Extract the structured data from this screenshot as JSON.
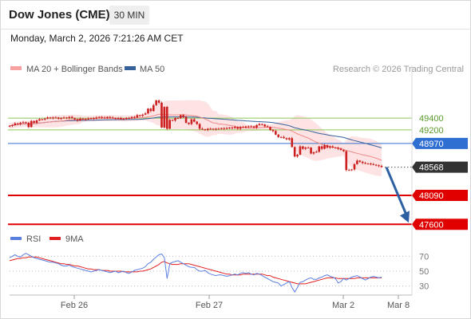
{
  "header": {
    "title": "Dow Jones (CME)",
    "timeframe": "30 MIN",
    "datetime": "Monday, March 2, 2026 7:21:26 AM CET"
  },
  "legend": {
    "ma20_label": "MA 20 + Bollinger Bands",
    "ma50_label": "MA 50",
    "copyright": "Research © 2026 Trading Central",
    "rsi_label": "RSI",
    "rsi_ma_label": "9MA"
  },
  "colors": {
    "ma20": "#f08a8a",
    "bands_fill": "#fde3e3",
    "ma50": "#35609a",
    "candle": "#cc1f1f",
    "resistance": "#8cc85a",
    "pivot": "#2f6fd1",
    "support": "#e00000",
    "arrow": "#2d5fa3",
    "rsi": "#5b7fe0",
    "rsi_ma": "#e02020",
    "last_price_box": "#333333"
  },
  "chart_data": [
    {
      "type": "candlestick",
      "title": "Dow Jones (CME)",
      "timeframe": "30 MIN",
      "x_tick_labels": [
        "Feb 26",
        "Feb 27",
        "Mar 2",
        "Mar 8"
      ],
      "ylim": [
        47550,
        50050
      ],
      "close": [
        49270,
        49280,
        49310,
        49300,
        49320,
        49330,
        49320,
        49250,
        49350,
        49320,
        49360,
        49380,
        49380,
        49390,
        49410,
        49400,
        49410,
        49410,
        49390,
        49400,
        49410,
        49400,
        49420,
        49400,
        49380,
        49360,
        49390,
        49380,
        49380,
        49390,
        49400,
        49390,
        49410,
        49420,
        49410,
        49400,
        49420,
        49410,
        49400,
        49390,
        49400,
        49380,
        49390,
        49400,
        49400,
        49420,
        49410,
        49450,
        49440,
        49460,
        49480,
        49560,
        49520,
        49620,
        49700,
        49660,
        49240,
        49590,
        49220,
        49370,
        49360,
        49400,
        49400,
        49450,
        49420,
        49320,
        49300,
        49380,
        49340,
        49300,
        49220,
        49210,
        49200,
        49220,
        49220,
        49210,
        49220,
        49220,
        49230,
        49220,
        49230,
        49240,
        49230,
        49250,
        49220,
        49250,
        49240,
        49260,
        49250,
        49260,
        49240,
        49280,
        49300,
        49290,
        49260,
        49250,
        49200,
        49180,
        49120,
        49080,
        49080,
        49060,
        49040,
        49060,
        48910,
        48750,
        48780,
        48920,
        48880,
        48900,
        48900,
        48800,
        48820,
        48830,
        48920,
        48880,
        48940,
        48900,
        48920,
        48900,
        48900,
        48880,
        48860,
        48840,
        48520,
        48520,
        48530,
        48620,
        48680,
        48660,
        48640,
        48630,
        48630,
        48620,
        48610,
        48600,
        48590,
        48570
      ],
      "series": [
        {
          "name": "MA 20 + Bollinger Bands",
          "note": "MA 20 line with upper/lower Bollinger bands (values derived from close)"
        },
        {
          "name": "MA 50"
        }
      ],
      "levels": [
        {
          "value": 49400,
          "label": "49400",
          "kind": "resistance"
        },
        {
          "value": 49200,
          "label": "49200",
          "kind": "resistance"
        },
        {
          "value": 48970,
          "label": "48970",
          "kind": "pivot"
        },
        {
          "value": 48568,
          "label": "48568",
          "kind": "last"
        },
        {
          "value": 48090,
          "label": "48090",
          "kind": "support"
        },
        {
          "value": 47600,
          "label": "47600",
          "kind": "support"
        }
      ],
      "forecast_arrow": {
        "from": 48568,
        "to": 47600
      }
    },
    {
      "type": "line",
      "title": "RSI",
      "ylim": [
        20,
        80
      ],
      "y_ticks": [
        70,
        50,
        30
      ],
      "series": [
        {
          "name": "RSI",
          "values": [
            68,
            70,
            72,
            70,
            69,
            72,
            74,
            72,
            70,
            68,
            67,
            66,
            65,
            64,
            63,
            62,
            62,
            61,
            60,
            58,
            57,
            57,
            58,
            56,
            55,
            54,
            53,
            52,
            51,
            50,
            49,
            50,
            51,
            52,
            51,
            50,
            49,
            48,
            49,
            50,
            48,
            49,
            50,
            48,
            47,
            49,
            51,
            52,
            53,
            54,
            56,
            60,
            62,
            66,
            69,
            72,
            73,
            68,
            40,
            60,
            62,
            63,
            64,
            62,
            60,
            58,
            56,
            55,
            55,
            52,
            50,
            50,
            51,
            48,
            46,
            45,
            44,
            45,
            45,
            44,
            43,
            44,
            45,
            46,
            45,
            47,
            48,
            47,
            48,
            46,
            45,
            47,
            46,
            44,
            42,
            40,
            38,
            36,
            35,
            34,
            30,
            32,
            34,
            36,
            28,
            22,
            28,
            35,
            36,
            38,
            40,
            41,
            39,
            39,
            41,
            42,
            44,
            45,
            43,
            42,
            40,
            34,
            36,
            40,
            38,
            40,
            42,
            43,
            44,
            42,
            40,
            38,
            40,
            42,
            43,
            42,
            41,
            42
          ]
        },
        {
          "name": "9MA",
          "values": [
            64,
            65,
            66,
            67,
            67,
            68,
            68,
            69,
            69,
            69,
            69,
            68,
            67,
            66,
            65,
            64,
            63,
            62,
            61,
            60,
            60,
            59,
            59,
            58,
            57,
            57,
            56,
            55,
            54,
            53,
            53,
            52,
            52,
            52,
            51,
            51,
            51,
            50,
            50,
            50,
            50,
            50,
            49,
            49,
            49,
            49,
            49,
            49,
            50,
            50,
            51,
            52,
            53,
            55,
            57,
            59,
            62,
            63,
            61,
            60,
            59,
            59,
            59,
            60,
            60,
            60,
            60,
            59,
            58,
            57,
            56,
            55,
            54,
            53,
            52,
            51,
            50,
            49,
            48,
            47,
            46,
            46,
            45,
            45,
            45,
            45,
            46,
            46,
            46,
            46,
            46,
            46,
            46,
            46,
            45,
            44,
            44,
            42,
            41,
            40,
            39,
            38,
            37,
            36,
            35,
            34,
            33,
            33,
            33,
            33,
            34,
            35,
            36,
            37,
            38,
            39,
            40,
            41,
            41,
            41,
            41,
            40,
            40,
            40,
            40,
            40,
            40,
            40,
            41,
            41,
            41,
            41,
            41,
            41,
            41,
            41,
            41,
            41
          ]
        }
      ]
    }
  ]
}
